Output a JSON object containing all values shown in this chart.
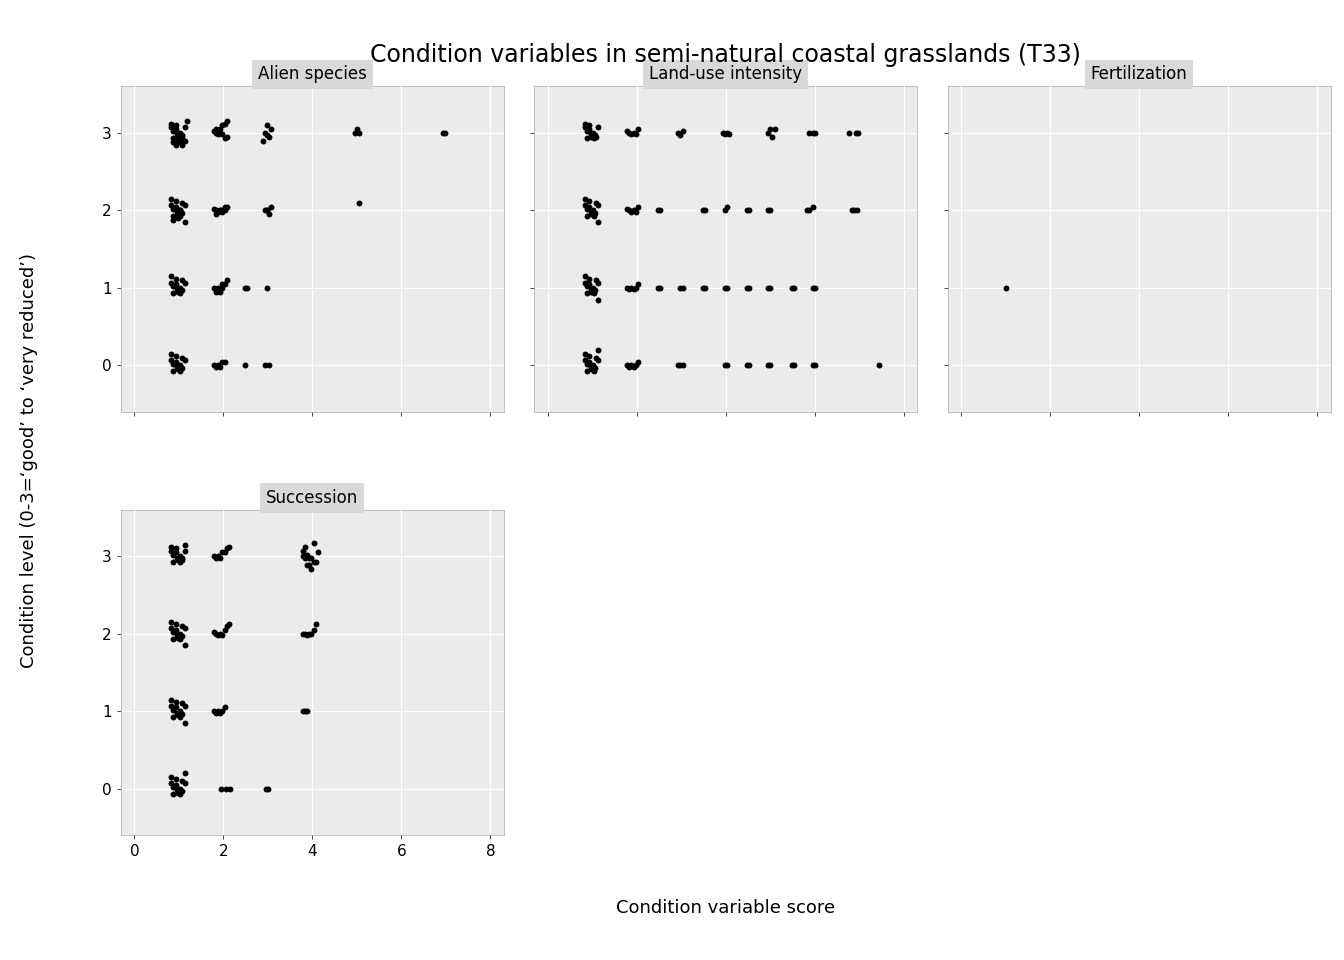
{
  "title": "Condition variables in semi-natural coastal grasslands (T33)",
  "xlabel": "Condition variable score",
  "ylabel": "Condition level (0-3=‘good’ to ‘very reduced’)",
  "xlim": [
    -0.3,
    8.3
  ],
  "ylim": [
    -0.6,
    3.6
  ],
  "yticks": [
    0,
    1,
    2,
    3
  ],
  "xticks": [
    0,
    2,
    4,
    6,
    8
  ],
  "bg_color": "#EBEBEB",
  "point_color": "#000000",
  "point_size": 18,
  "title_fontsize": 17,
  "axis_label_fontsize": 13,
  "tick_fontsize": 11,
  "strip_bg": "#D9D9D9",
  "strip_fontsize": 12,
  "alien_species_x": [
    0.88,
    0.93,
    0.97,
    1.02,
    1.07,
    0.83,
    1.13,
    0.88,
    0.98,
    1.03,
    1.08,
    0.93,
    0.83,
    1.13,
    0.88,
    0.98,
    1.03,
    1.08,
    0.93,
    1.18,
    1.78,
    1.83,
    1.88,
    1.93,
    1.98,
    2.03,
    2.08,
    1.83,
    1.93,
    1.98,
    2.03,
    2.08,
    2.93,
    2.98,
    3.03,
    3.08,
    2.88,
    2.98,
    4.95,
    5.05,
    5.0,
    6.93,
    6.98,
    0.88,
    0.93,
    0.97,
    1.02,
    1.07,
    0.83,
    1.13,
    0.88,
    0.98,
    1.03,
    1.08,
    0.93,
    0.83,
    1.13,
    0.88,
    0.98,
    1.03,
    1.78,
    1.83,
    1.88,
    1.93,
    1.98,
    2.03,
    2.08,
    1.83,
    1.93,
    1.98,
    2.03,
    2.93,
    2.98,
    3.03,
    3.08,
    2.98,
    5.05,
    0.88,
    0.93,
    0.97,
    1.02,
    1.07,
    0.83,
    1.13,
    0.88,
    0.98,
    1.03,
    1.08,
    0.93,
    0.83,
    1.78,
    1.83,
    1.88,
    1.93,
    1.98,
    2.03,
    2.08,
    1.83,
    1.93,
    1.98,
    2.48,
    2.53,
    2.98,
    0.88,
    0.93,
    0.97,
    1.02,
    1.07,
    0.83,
    1.13,
    0.88,
    0.98,
    1.03,
    1.08,
    0.93,
    0.83,
    1.78,
    1.83,
    1.88,
    1.93,
    1.98,
    2.03,
    2.48,
    2.93,
    3.03
  ],
  "alien_species_y": [
    3.02,
    3.05,
    2.98,
    3.0,
    2.97,
    3.07,
    3.07,
    2.93,
    2.95,
    2.93,
    2.95,
    3.1,
    3.12,
    2.9,
    2.88,
    2.9,
    2.88,
    2.85,
    2.85,
    3.15,
    3.02,
    3.0,
    2.98,
    3.0,
    2.98,
    2.93,
    2.95,
    3.05,
    3.05,
    3.1,
    3.12,
    3.15,
    3.0,
    2.97,
    2.95,
    3.05,
    2.9,
    3.1,
    3.0,
    3.0,
    3.05,
    3.0,
    3.0,
    2.02,
    2.05,
    1.98,
    2.0,
    1.97,
    2.07,
    2.07,
    1.93,
    1.95,
    1.93,
    2.1,
    2.12,
    2.15,
    1.85,
    1.88,
    1.9,
    2.0,
    2.02,
    2.0,
    1.98,
    2.0,
    1.98,
    2.05,
    2.05,
    1.95,
    2.0,
    2.0,
    2.0,
    2.0,
    2.0,
    1.95,
    2.05,
    2.0,
    2.1,
    1.02,
    1.05,
    0.98,
    1.0,
    0.97,
    1.07,
    1.07,
    0.93,
    0.95,
    0.93,
    1.1,
    1.12,
    1.15,
    1.0,
    0.98,
    1.0,
    0.98,
    1.05,
    1.05,
    1.1,
    0.95,
    0.95,
    1.0,
    1.0,
    1.0,
    1.0,
    0.02,
    0.05,
    -0.02,
    0.0,
    -0.03,
    0.07,
    0.07,
    -0.07,
    -0.05,
    -0.07,
    0.1,
    0.12,
    0.15,
    0.0,
    -0.02,
    0.0,
    -0.02,
    0.05,
    0.05,
    0.0,
    0.0,
    0.0
  ],
  "land_use_x": [
    0.88,
    0.93,
    0.97,
    1.02,
    1.07,
    0.83,
    1.13,
    0.88,
    0.98,
    1.03,
    1.08,
    0.93,
    0.83,
    1.78,
    1.83,
    1.88,
    1.93,
    1.98,
    2.03,
    2.93,
    2.98,
    3.03,
    3.93,
    3.98,
    4.03,
    4.08,
    4.95,
    5.0,
    5.05,
    5.1,
    5.88,
    5.95,
    6.0,
    6.78,
    6.93,
    6.98,
    0.88,
    0.93,
    0.97,
    1.02,
    1.07,
    0.83,
    1.13,
    0.88,
    0.98,
    1.03,
    1.08,
    0.93,
    0.83,
    1.13,
    1.78,
    1.83,
    1.88,
    1.93,
    1.98,
    2.03,
    2.48,
    2.53,
    3.48,
    3.53,
    3.98,
    4.03,
    4.48,
    4.53,
    4.95,
    5.0,
    5.83,
    5.88,
    5.95,
    6.83,
    6.88,
    6.95,
    0.88,
    0.93,
    0.97,
    1.02,
    1.07,
    0.83,
    1.13,
    0.88,
    0.98,
    1.03,
    1.08,
    0.93,
    0.83,
    1.13,
    1.78,
    1.83,
    1.88,
    1.93,
    1.98,
    2.03,
    2.48,
    2.53,
    2.98,
    3.03,
    3.48,
    3.53,
    3.98,
    4.03,
    4.48,
    4.53,
    4.95,
    5.0,
    5.48,
    5.53,
    5.95,
    6.0,
    0.88,
    0.93,
    0.97,
    1.02,
    1.07,
    0.83,
    1.13,
    0.88,
    0.98,
    1.03,
    1.08,
    0.93,
    0.83,
    1.13,
    1.78,
    1.83,
    1.88,
    1.93,
    1.98,
    2.03,
    2.93,
    2.98,
    3.03,
    3.98,
    4.03,
    4.48,
    4.53,
    4.95,
    5.0,
    5.48,
    5.53,
    5.95,
    6.0,
    7.45
  ],
  "land_use_y": [
    3.02,
    3.05,
    2.98,
    3.0,
    2.97,
    3.07,
    3.07,
    2.93,
    2.95,
    2.93,
    2.95,
    3.1,
    3.12,
    3.02,
    3.0,
    2.98,
    3.0,
    2.98,
    3.05,
    3.0,
    2.97,
    3.02,
    3.0,
    2.98,
    3.0,
    2.98,
    3.0,
    3.05,
    2.95,
    3.05,
    3.0,
    3.0,
    3.0,
    3.0,
    3.0,
    3.0,
    2.02,
    2.05,
    1.98,
    2.0,
    1.97,
    2.07,
    2.07,
    1.93,
    1.95,
    1.93,
    2.1,
    2.12,
    2.15,
    1.85,
    2.02,
    2.0,
    1.98,
    2.0,
    1.98,
    2.05,
    2.0,
    2.0,
    2.0,
    2.0,
    2.0,
    2.05,
    2.0,
    2.0,
    2.0,
    2.0,
    2.0,
    2.0,
    2.05,
    2.0,
    2.0,
    2.0,
    1.02,
    1.05,
    0.98,
    1.0,
    0.97,
    1.07,
    1.07,
    0.93,
    0.95,
    0.93,
    1.1,
    1.12,
    1.15,
    0.85,
    1.0,
    0.98,
    1.0,
    0.98,
    1.0,
    1.05,
    1.0,
    1.0,
    1.0,
    1.0,
    1.0,
    1.0,
    1.0,
    1.0,
    1.0,
    1.0,
    1.0,
    1.0,
    1.0,
    1.0,
    1.0,
    1.0,
    0.02,
    0.05,
    -0.02,
    0.0,
    -0.03,
    0.07,
    0.07,
    -0.07,
    -0.05,
    -0.07,
    0.1,
    0.12,
    0.15,
    0.2,
    0.0,
    -0.02,
    0.0,
    -0.02,
    0.0,
    0.05,
    0.0,
    0.0,
    0.0,
    0.0,
    0.0,
    0.0,
    0.0,
    0.0,
    0.0,
    0.0,
    0.0,
    0.0,
    0.0,
    0.0
  ],
  "fertilization_x": [
    1.0
  ],
  "fertilization_y": [
    1.0
  ],
  "succession_x": [
    0.88,
    0.93,
    0.97,
    1.02,
    1.07,
    0.83,
    1.13,
    0.88,
    0.98,
    1.03,
    1.08,
    0.93,
    0.83,
    1.13,
    1.78,
    1.83,
    1.88,
    1.93,
    1.98,
    2.03,
    2.08,
    2.13,
    3.78,
    3.83,
    3.88,
    3.93,
    3.98,
    4.03,
    4.08,
    4.13,
    3.78,
    3.83,
    3.88,
    3.93,
    3.98,
    4.03,
    0.88,
    0.93,
    0.97,
    1.02,
    1.07,
    0.83,
    1.13,
    0.88,
    0.98,
    1.03,
    1.08,
    0.93,
    0.83,
    1.13,
    1.78,
    1.83,
    1.88,
    1.93,
    1.98,
    2.03,
    2.08,
    2.13,
    3.78,
    3.83,
    3.88,
    3.93,
    3.98,
    4.03,
    4.08,
    0.88,
    0.93,
    0.97,
    1.02,
    1.07,
    0.83,
    1.13,
    0.88,
    0.98,
    1.03,
    1.08,
    0.93,
    0.83,
    1.13,
    1.78,
    1.83,
    1.88,
    1.93,
    1.98,
    2.03,
    3.78,
    3.83,
    3.88,
    0.88,
    0.93,
    0.97,
    1.02,
    1.07,
    0.83,
    1.13,
    0.88,
    0.98,
    1.03,
    1.08,
    0.93,
    0.83,
    1.13,
    1.95,
    2.05,
    2.15,
    2.95,
    3.0
  ],
  "succession_y": [
    3.02,
    3.05,
    2.98,
    3.0,
    2.97,
    3.07,
    3.07,
    2.93,
    2.95,
    2.93,
    2.95,
    3.1,
    3.12,
    3.15,
    3.0,
    2.98,
    3.0,
    2.98,
    3.05,
    3.05,
    3.1,
    3.12,
    3.0,
    2.97,
    3.02,
    2.98,
    2.98,
    2.93,
    2.93,
    3.05,
    3.07,
    3.12,
    2.88,
    2.88,
    2.83,
    3.17,
    2.02,
    2.05,
    1.98,
    2.0,
    1.97,
    2.07,
    2.07,
    1.93,
    1.95,
    1.93,
    2.1,
    2.12,
    2.15,
    1.85,
    2.02,
    2.0,
    1.98,
    2.0,
    1.98,
    2.05,
    2.1,
    2.12,
    2.0,
    2.0,
    1.98,
    2.0,
    2.0,
    2.05,
    2.12,
    1.02,
    1.05,
    0.98,
    1.0,
    0.97,
    1.07,
    1.07,
    0.93,
    0.95,
    0.93,
    1.1,
    1.12,
    1.15,
    0.85,
    1.0,
    0.98,
    1.0,
    0.98,
    1.0,
    1.05,
    1.0,
    1.0,
    1.0,
    0.02,
    0.05,
    -0.02,
    0.0,
    -0.03,
    0.07,
    0.07,
    -0.07,
    -0.05,
    -0.07,
    0.1,
    0.12,
    0.15,
    0.2,
    0.0,
    0.0,
    0.0,
    0.0,
    0.0
  ]
}
